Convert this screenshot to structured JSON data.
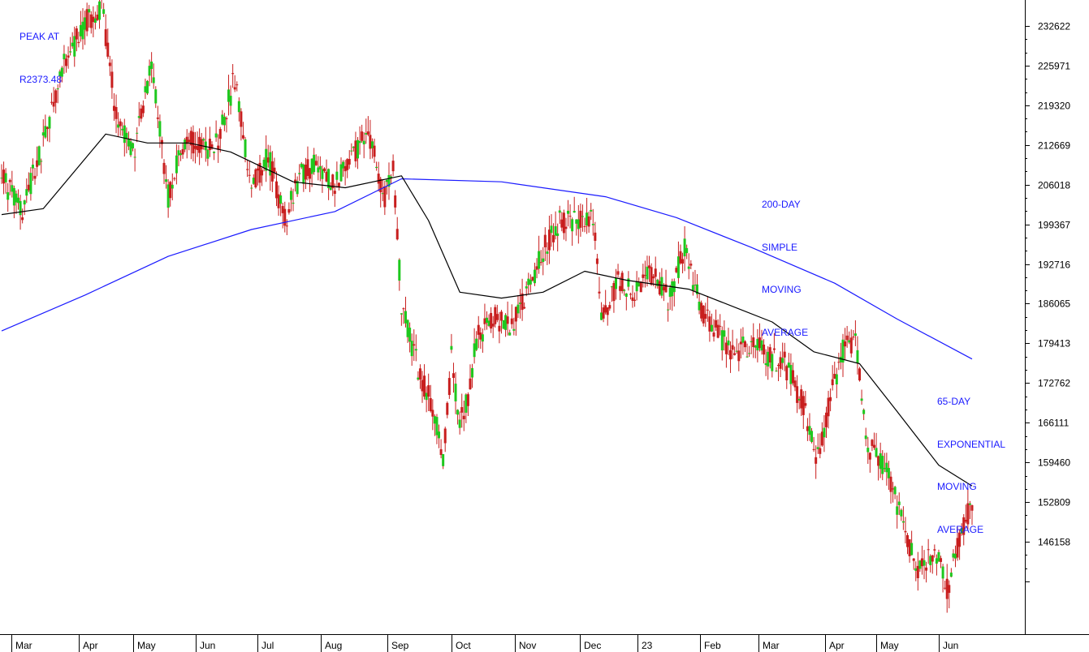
{
  "chart_data": {
    "type": "candlestick",
    "title": "",
    "xlabel": "",
    "ylabel": "",
    "ylim": [
      131400,
      240500
    ],
    "y_ticks": [
      232622,
      225971,
      219320,
      212669,
      206018,
      199367,
      192716,
      186065,
      179413,
      172762,
      166111,
      159460,
      152809,
      146158,
      139507
    ],
    "y_tick_labels": [
      "232622",
      "225971",
      "219320",
      "212669",
      "206018",
      "199367",
      "192716",
      "186065",
      "179413",
      "172762",
      "166111",
      "159460",
      "152809",
      "146158",
      ""
    ],
    "x_tick_labels": [
      "Mar",
      "Apr",
      "May",
      "Jun",
      "Jul",
      "Aug",
      "Sep",
      "Oct",
      "Nov",
      "Dec",
      "23",
      "Feb",
      "Mar",
      "Apr",
      "May",
      "Jun"
    ],
    "grid": false,
    "colors": {
      "up": "#1ec81e",
      "down": "#c81e1e",
      "sma": "#1a1aff",
      "ema": "#000000",
      "annotation": "#1a1aff"
    },
    "approx_close_path": [
      [
        0,
        207000
      ],
      [
        10,
        202000
      ],
      [
        20,
        213000
      ],
      [
        30,
        226000
      ],
      [
        40,
        233000
      ],
      [
        48,
        236000
      ],
      [
        56,
        215000
      ],
      [
        64,
        212000
      ],
      [
        72,
        226000
      ],
      [
        80,
        204000
      ],
      [
        88,
        214000
      ],
      [
        96,
        212000
      ],
      [
        104,
        213000
      ],
      [
        112,
        224000
      ],
      [
        120,
        205000
      ],
      [
        128,
        211000
      ],
      [
        136,
        200000
      ],
      [
        144,
        208000
      ],
      [
        152,
        210000
      ],
      [
        160,
        206000
      ],
      [
        168,
        211000
      ],
      [
        176,
        215000
      ],
      [
        184,
        204000
      ],
      [
        188,
        208000
      ],
      [
        192,
        186000
      ],
      [
        200,
        175000
      ],
      [
        208,
        168000
      ],
      [
        212,
        160000
      ],
      [
        216,
        177000
      ],
      [
        220,
        166000
      ],
      [
        224,
        171000
      ],
      [
        228,
        180000
      ],
      [
        236,
        184000
      ],
      [
        244,
        182000
      ],
      [
        252,
        188000
      ],
      [
        260,
        195000
      ],
      [
        268,
        200000
      ],
      [
        276,
        200000
      ],
      [
        284,
        201000
      ],
      [
        288,
        184000
      ],
      [
        296,
        190000
      ],
      [
        304,
        188000
      ],
      [
        312,
        191000
      ],
      [
        320,
        187000
      ],
      [
        328,
        195000
      ],
      [
        336,
        185000
      ],
      [
        344,
        181000
      ],
      [
        352,
        177000
      ],
      [
        360,
        180000
      ],
      [
        368,
        177000
      ],
      [
        376,
        176000
      ],
      [
        384,
        170000
      ],
      [
        392,
        160000
      ],
      [
        398,
        170000
      ],
      [
        404,
        178000
      ],
      [
        410,
        180000
      ],
      [
        416,
        162000
      ],
      [
        424,
        159000
      ],
      [
        432,
        150000
      ],
      [
        440,
        141000
      ],
      [
        448,
        145000
      ],
      [
        454,
        138000
      ],
      [
        460,
        147000
      ],
      [
        466,
        153000
      ]
    ],
    "series": [
      {
        "name": "200-DAY SIMPLE MOVING AVERAGE",
        "points": [
          [
            0,
            181500
          ],
          [
            40,
            187500
          ],
          [
            80,
            194000
          ],
          [
            120,
            198500
          ],
          [
            160,
            201500
          ],
          [
            192,
            207000
          ],
          [
            240,
            206500
          ],
          [
            290,
            204000
          ],
          [
            324,
            200500
          ],
          [
            360,
            195500
          ],
          [
            400,
            189500
          ],
          [
            430,
            183500
          ],
          [
            466,
            176800
          ]
        ]
      },
      {
        "name": "65-DAY EXPONENTIAL MOVING AVERAGE",
        "points": [
          [
            0,
            201000
          ],
          [
            20,
            202000
          ],
          [
            50,
            214500
          ],
          [
            70,
            213000
          ],
          [
            90,
            213000
          ],
          [
            110,
            211500
          ],
          [
            140,
            206500
          ],
          [
            165,
            205500
          ],
          [
            192,
            207500
          ],
          [
            205,
            200000
          ],
          [
            220,
            188000
          ],
          [
            240,
            187000
          ],
          [
            260,
            188000
          ],
          [
            280,
            191500
          ],
          [
            300,
            190000
          ],
          [
            330,
            188500
          ],
          [
            370,
            183000
          ],
          [
            390,
            178000
          ],
          [
            412,
            176000
          ],
          [
            430,
            168000
          ],
          [
            450,
            159000
          ],
          [
            466,
            155500
          ]
        ]
      }
    ],
    "annotations": [
      {
        "lines": [
          "PEAK AT",
          "R2373.48"
        ]
      },
      {
        "lines": [
          "200-DAY",
          "SIMPLE",
          "MOVING",
          "AVERAGE"
        ]
      },
      {
        "lines": [
          "65-DAY",
          "EXPONENTIAL",
          "MOVING",
          "AVERAGE"
        ]
      }
    ]
  }
}
